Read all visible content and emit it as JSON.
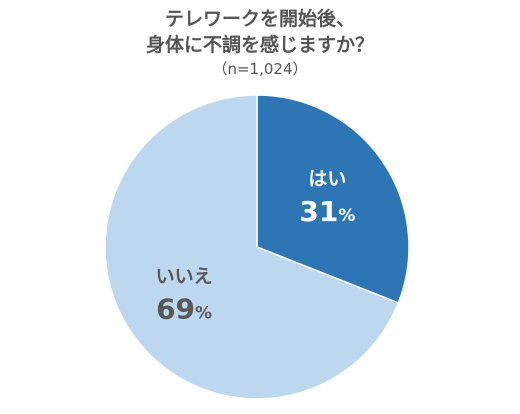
{
  "chart_data": {
    "type": "pie",
    "title_lines": [
      "テレワークを開始後、",
      "身体に不調を感じますか？"
    ],
    "subtitle": "（n=1,024）",
    "slices": [
      {
        "label": "はい",
        "value": 31,
        "value_text": "31",
        "unit": "%",
        "color": "#2e75b6",
        "label_color": "#ffffff"
      },
      {
        "label": "いいえ",
        "value": 69,
        "value_text": "69",
        "unit": "%",
        "color": "#bdd7ee",
        "label_color": "#595959"
      }
    ],
    "start": "12 o'clock",
    "direction": "clockwise"
  }
}
